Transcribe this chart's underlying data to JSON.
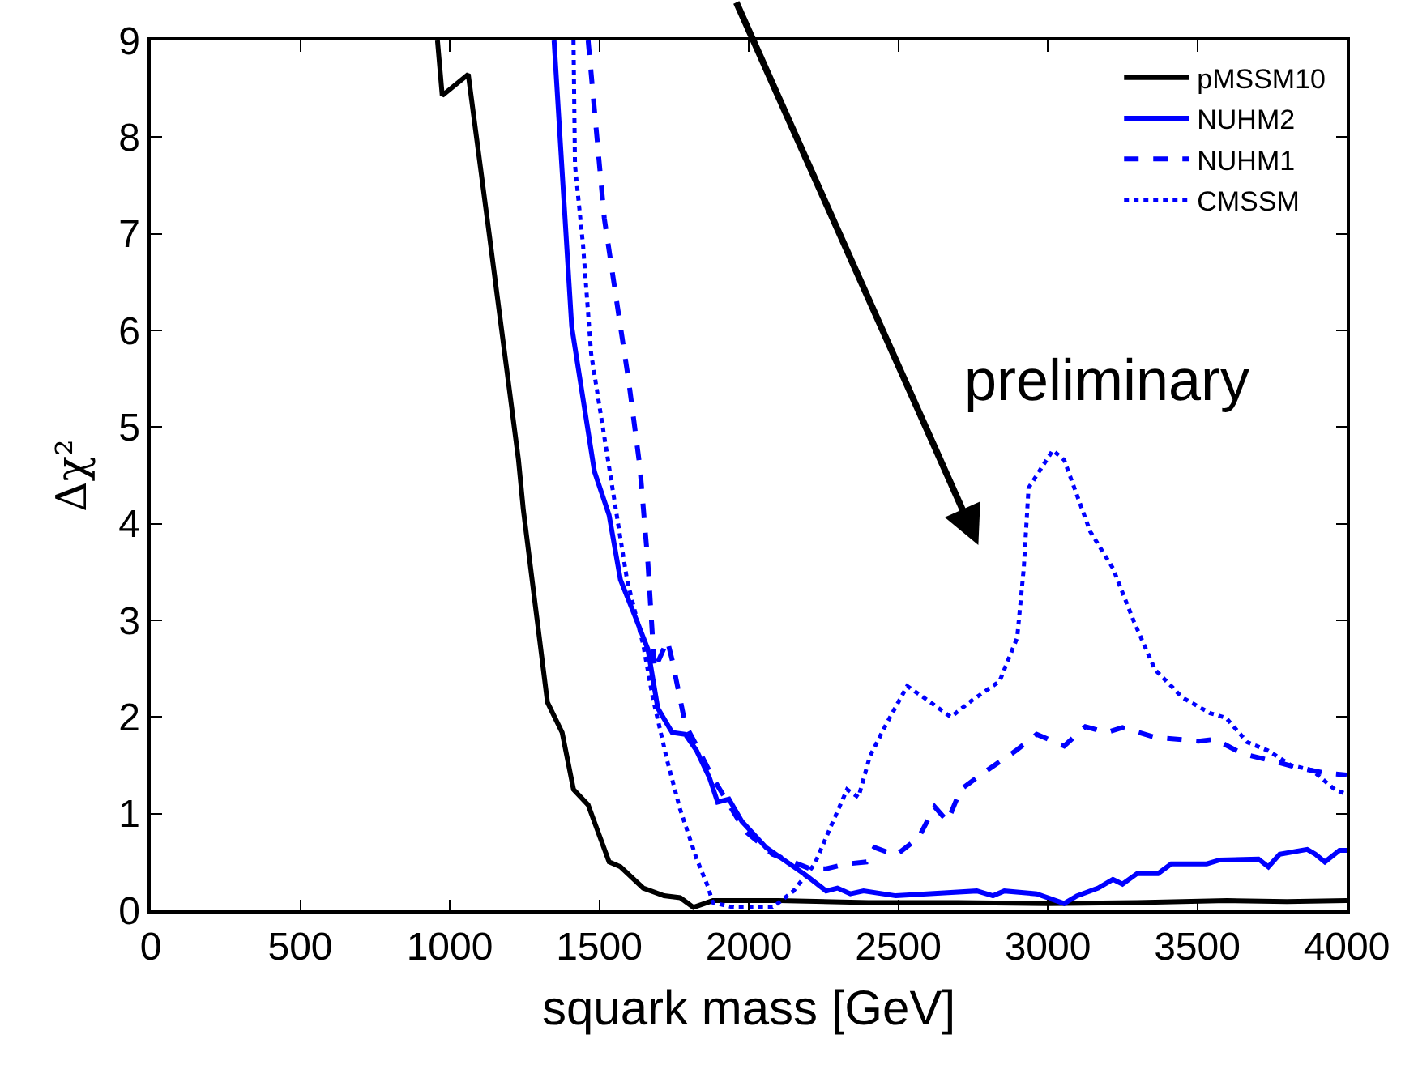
{
  "chart_data": {
    "type": "line",
    "xlabel": "squark mass [GeV]",
    "ylabel": "Δχ²",
    "xlim": [
      0,
      4000
    ],
    "xticks": [
      0,
      500,
      1000,
      1500,
      2000,
      2500,
      3000,
      3500,
      4000
    ],
    "ylim": [
      0,
      9
    ],
    "yticks": [
      0,
      1,
      2,
      3,
      4,
      5,
      6,
      7,
      8,
      9
    ],
    "legend": "top right",
    "marker": "none",
    "annotations": [
      "preliminary"
    ],
    "series": [
      {
        "name": "pMSSM10",
        "color": "#000000",
        "line_style": "solid",
        "x": [
          959,
          975,
          1062,
          1132,
          1230,
          1246,
          1327,
          1376,
          1414,
          1463,
          1533,
          1571,
          1647,
          1717,
          1771,
          1815,
          1880,
          2100,
          2400,
          2700,
          3000,
          3300,
          3600,
          3800,
          4000
        ],
        "values": [
          9,
          8.43,
          8.65,
          7.0,
          4.66,
          4.15,
          2.15,
          1.84,
          1.25,
          1.09,
          0.5,
          0.45,
          0.23,
          0.15,
          0.13,
          0.03,
          0.1,
          0.1,
          0.08,
          0.08,
          0.07,
          0.08,
          0.1,
          0.09,
          0.1
        ]
      },
      {
        "name": "NUHM2",
        "color": "#0000ff",
        "line_style": "solid",
        "x": [
          1349,
          1408,
          1484,
          1533,
          1571,
          1620,
          1663,
          1696,
          1744,
          1788,
          1826,
          1869,
          1896,
          1934,
          1977,
          2058,
          2188,
          2259,
          2297,
          2340,
          2384,
          2492,
          2654,
          2763,
          2817,
          2855,
          2963,
          3055,
          3098,
          3169,
          3218,
          3250,
          3299,
          3369,
          3413,
          3532,
          3575,
          3705,
          3738,
          3776,
          3868,
          3895,
          3927,
          3976,
          4000
        ],
        "values": [
          9,
          6.04,
          4.54,
          4.09,
          3.42,
          3.04,
          2.7,
          2.09,
          1.84,
          1.82,
          1.65,
          1.37,
          1.12,
          1.15,
          0.92,
          0.65,
          0.37,
          0.2,
          0.23,
          0.17,
          0.2,
          0.15,
          0.18,
          0.2,
          0.15,
          0.2,
          0.17,
          0.07,
          0.15,
          0.23,
          0.32,
          0.27,
          0.38,
          0.38,
          0.48,
          0.48,
          0.52,
          0.53,
          0.45,
          0.58,
          0.63,
          0.58,
          0.5,
          0.62,
          0.62
        ]
      },
      {
        "name": "NUHM1",
        "color": "#0000ff",
        "line_style": "dashed",
        "x": [
          1463,
          1517,
          1571,
          1598,
          1636,
          1663,
          1685,
          1728,
          1744,
          1788,
          1826,
          1880,
          1988,
          2080,
          2205,
          2259,
          2329,
          2394,
          2421,
          2492,
          2568,
          2622,
          2665,
          2709,
          2784,
          2893,
          2963,
          3055,
          3126,
          3196,
          3250,
          3359,
          3505,
          3559,
          3651,
          3759,
          3830,
          3927,
          4000
        ],
        "values": [
          9,
          7.16,
          6.04,
          5.49,
          4.59,
          3.59,
          2.49,
          2.79,
          2.59,
          1.92,
          1.7,
          1.37,
          0.82,
          0.58,
          0.43,
          0.43,
          0.48,
          0.5,
          0.65,
          0.57,
          0.75,
          1.07,
          0.92,
          1.25,
          1.42,
          1.65,
          1.82,
          1.7,
          1.9,
          1.84,
          1.89,
          1.79,
          1.75,
          1.77,
          1.62,
          1.54,
          1.48,
          1.42,
          1.4
        ]
      },
      {
        "name": "CMSSM",
        "color": "#0000ff",
        "line_style": "dotted",
        "x": [
          1414,
          1419,
          1446,
          1473,
          1538,
          1593,
          1647,
          1679,
          1728,
          1771,
          1826,
          1863,
          1880,
          1950,
          2080,
          2150,
          2221,
          2275,
          2329,
          2367,
          2405,
          2459,
          2530,
          2600,
          2676,
          2746,
          2839,
          2898,
          2920,
          2936,
          3017,
          3055,
          3142,
          3218,
          3288,
          3359,
          3451,
          3543,
          3597,
          3667,
          3738,
          3814,
          3884,
          3960,
          4000
        ],
        "values": [
          9,
          7.71,
          6.88,
          5.76,
          4.49,
          3.42,
          2.75,
          2.2,
          1.54,
          1.04,
          0.53,
          0.25,
          0.08,
          0.03,
          0.03,
          0.2,
          0.48,
          0.87,
          1.25,
          1.17,
          1.59,
          1.92,
          2.32,
          2.17,
          2.0,
          2.17,
          2.37,
          2.82,
          3.54,
          4.37,
          4.76,
          4.66,
          3.92,
          3.54,
          2.99,
          2.49,
          2.2,
          2.04,
          1.99,
          1.74,
          1.65,
          1.5,
          1.45,
          1.25,
          1.2
        ]
      }
    ]
  }
}
